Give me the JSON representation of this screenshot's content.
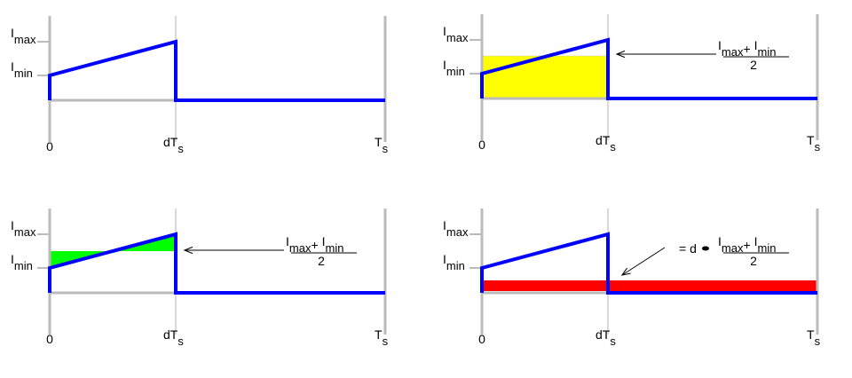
{
  "panels": [
    {
      "y_labels": [
        {
          "base": "I",
          "sub": "max"
        },
        {
          "base": "I",
          "sub": "min"
        }
      ],
      "x_labels": [
        {
          "base": "0"
        },
        {
          "base": "dT",
          "sub": "s"
        },
        {
          "base": "T",
          "sub": "s"
        }
      ]
    },
    {
      "y_labels": [
        {
          "base": "I",
          "sub": "max"
        },
        {
          "base": "I",
          "sub": "min"
        }
      ],
      "x_labels": [
        {
          "base": "0"
        },
        {
          "base": "dT",
          "sub": "s"
        },
        {
          "base": "T",
          "sub": "s"
        }
      ],
      "annotation": {
        "numerator": {
          "a": {
            "base": "I",
            "sub": "max"
          },
          "op": "+",
          "b": {
            "base": "I",
            "sub": "min"
          }
        },
        "denominator": "2"
      }
    },
    {
      "y_labels": [
        {
          "base": "I",
          "sub": "max"
        },
        {
          "base": "I",
          "sub": "min"
        }
      ],
      "x_labels": [
        {
          "base": "0"
        },
        {
          "base": "dT",
          "sub": "s"
        },
        {
          "base": "T",
          "sub": "s"
        }
      ],
      "annotation": {
        "numerator": {
          "a": {
            "base": "I",
            "sub": "max"
          },
          "op": "+",
          "b": {
            "base": "I",
            "sub": "min"
          }
        },
        "denominator": "2"
      }
    },
    {
      "y_labels": [
        {
          "base": "I",
          "sub": "max"
        },
        {
          "base": "I",
          "sub": "min"
        }
      ],
      "x_labels": [
        {
          "base": "0"
        },
        {
          "base": "dT",
          "sub": "s"
        },
        {
          "base": "T",
          "sub": "s"
        }
      ],
      "annotation": {
        "prefix": "= d",
        "numerator": {
          "a": {
            "base": "I",
            "sub": "max"
          },
          "op": "+",
          "b": {
            "base": "I",
            "sub": "min"
          }
        },
        "denominator": "2"
      }
    }
  ]
}
